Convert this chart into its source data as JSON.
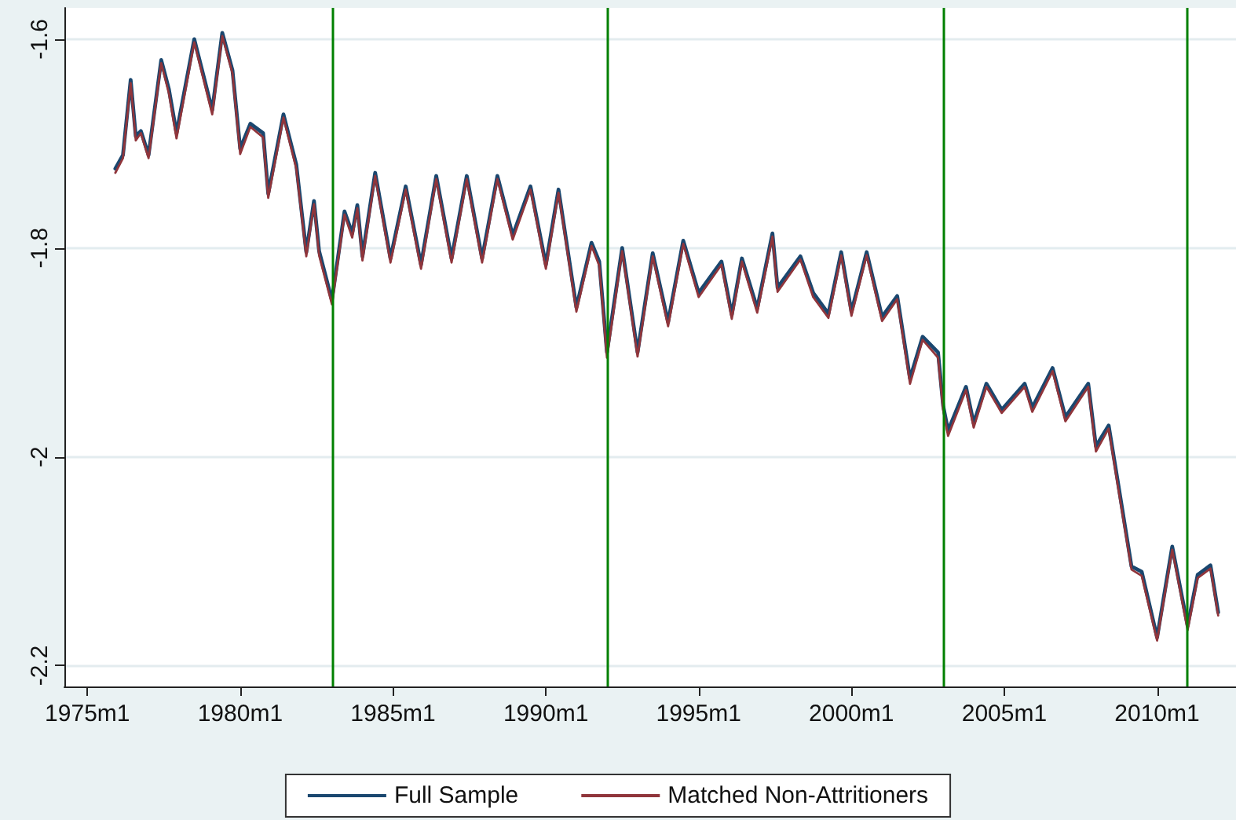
{
  "chart_data": {
    "type": "line",
    "x": [
      "1975-12",
      "1976-03",
      "1976-06",
      "1976-08",
      "1976-10",
      "1977-01",
      "1977-06",
      "1977-09",
      "1977-12",
      "1978-07",
      "1979-02",
      "1979-06",
      "1979-10",
      "1980-01",
      "1980-05",
      "1980-10",
      "1980-12",
      "1981-06",
      "1981-11",
      "1982-03",
      "1982-06",
      "1982-08",
      "1983-01",
      "1983-06",
      "1983-09",
      "1983-11",
      "1984-01",
      "1984-06",
      "1984-12",
      "1985-06",
      "1985-12",
      "1986-06",
      "1986-12",
      "1987-06",
      "1987-12",
      "1988-06",
      "1988-12",
      "1989-07",
      "1990-01",
      "1990-06",
      "1991-01",
      "1991-07",
      "1991-10",
      "1992-01",
      "1992-07",
      "1993-01",
      "1993-07",
      "1994-01",
      "1994-07",
      "1995-01",
      "1995-10",
      "1996-02",
      "1996-06",
      "1996-12",
      "1997-06",
      "1997-08",
      "1998-05",
      "1998-10",
      "1999-04",
      "1999-09",
      "2000-01",
      "2000-07",
      "2001-01",
      "2001-07",
      "2001-12",
      "2002-05",
      "2002-11",
      "2003-01",
      "2003-03",
      "2003-10",
      "2004-01",
      "2004-06",
      "2004-12",
      "2005-09",
      "2005-12",
      "2006-08",
      "2007-01",
      "2007-10",
      "2008-01",
      "2008-06",
      "2008-10",
      "2009-03",
      "2009-07",
      "2010-01",
      "2010-07",
      "2011-01",
      "2011-05",
      "2011-10",
      "2012-01"
    ],
    "series": [
      {
        "name": "Full Sample",
        "color": "#1a476f",
        "values": [
          -1.724,
          -1.711,
          -1.639,
          -1.693,
          -1.688,
          -1.711,
          -1.62,
          -1.648,
          -1.69,
          -1.6,
          -1.668,
          -1.594,
          -1.63,
          -1.705,
          -1.681,
          -1.69,
          -1.748,
          -1.672,
          -1.72,
          -1.804,
          -1.755,
          -1.803,
          -1.85,
          -1.765,
          -1.786,
          -1.759,
          -1.808,
          -1.728,
          -1.81,
          -1.741,
          -1.816,
          -1.731,
          -1.81,
          -1.731,
          -1.81,
          -1.731,
          -1.788,
          -1.741,
          -1.816,
          -1.744,
          -1.857,
          -1.795,
          -1.813,
          -1.9,
          -1.8,
          -1.9,
          -1.805,
          -1.871,
          -1.793,
          -1.843,
          -1.813,
          -1.864,
          -1.81,
          -1.858,
          -1.786,
          -1.838,
          -1.808,
          -1.843,
          -1.863,
          -1.804,
          -1.861,
          -1.804,
          -1.866,
          -1.846,
          -1.925,
          -1.885,
          -1.9,
          -1.951,
          -1.975,
          -1.933,
          -1.968,
          -1.93,
          -1.955,
          -1.93,
          -1.953,
          -1.915,
          -1.962,
          -1.93,
          -1.99,
          -1.97,
          -2.03,
          -2.105,
          -2.11,
          -2.173,
          -2.086,
          -2.162,
          -2.113,
          -2.104,
          -2.149
        ]
      },
      {
        "name": "Matched Non-Attritioners",
        "color": "#90353b",
        "values": [
          -1.728,
          -1.714,
          -1.642,
          -1.697,
          -1.69,
          -1.714,
          -1.623,
          -1.652,
          -1.695,
          -1.603,
          -1.672,
          -1.597,
          -1.633,
          -1.71,
          -1.684,
          -1.694,
          -1.752,
          -1.675,
          -1.724,
          -1.808,
          -1.758,
          -1.807,
          -1.854,
          -1.768,
          -1.79,
          -1.762,
          -1.812,
          -1.731,
          -1.814,
          -1.744,
          -1.82,
          -1.734,
          -1.814,
          -1.734,
          -1.814,
          -1.734,
          -1.792,
          -1.744,
          -1.82,
          -1.747,
          -1.861,
          -1.798,
          -1.817,
          -1.905,
          -1.803,
          -1.904,
          -1.808,
          -1.875,
          -1.796,
          -1.847,
          -1.816,
          -1.868,
          -1.813,
          -1.862,
          -1.789,
          -1.842,
          -1.811,
          -1.847,
          -1.867,
          -1.807,
          -1.865,
          -1.807,
          -1.87,
          -1.849,
          -1.93,
          -1.888,
          -1.905,
          -1.955,
          -1.98,
          -1.936,
          -1.972,
          -1.933,
          -1.958,
          -1.933,
          -1.957,
          -1.918,
          -1.966,
          -1.933,
          -1.995,
          -1.973,
          -2.034,
          -2.108,
          -2.114,
          -2.176,
          -2.089,
          -2.166,
          -2.116,
          -2.107,
          -2.152
        ]
      }
    ],
    "xlim": [
      "1974-04",
      "2012-08"
    ],
    "xticks": [
      {
        "value": "1975-01",
        "label": "1975m1"
      },
      {
        "value": "1980-01",
        "label": "1980m1"
      },
      {
        "value": "1985-01",
        "label": "1985m1"
      },
      {
        "value": "1990-01",
        "label": "1990m1"
      },
      {
        "value": "1995-01",
        "label": "1995m1"
      },
      {
        "value": "2000-01",
        "label": "2000m1"
      },
      {
        "value": "2005-01",
        "label": "2005m1"
      },
      {
        "value": "2010-01",
        "label": "2010m1"
      }
    ],
    "ylim": [
      -2.22,
      -1.57
    ],
    "yticks": [
      -1.6,
      -1.8,
      -2,
      -2.2
    ],
    "grid": "y",
    "legend": "bottom",
    "ref_lines": [
      {
        "axis": "x",
        "value": "1983-01",
        "color": "#008000"
      },
      {
        "axis": "x",
        "value": "1992-01",
        "color": "#008000"
      },
      {
        "axis": "x",
        "value": "2003-01",
        "color": "#008000"
      },
      {
        "axis": "x",
        "value": "2011-01",
        "color": "#008000"
      }
    ]
  }
}
